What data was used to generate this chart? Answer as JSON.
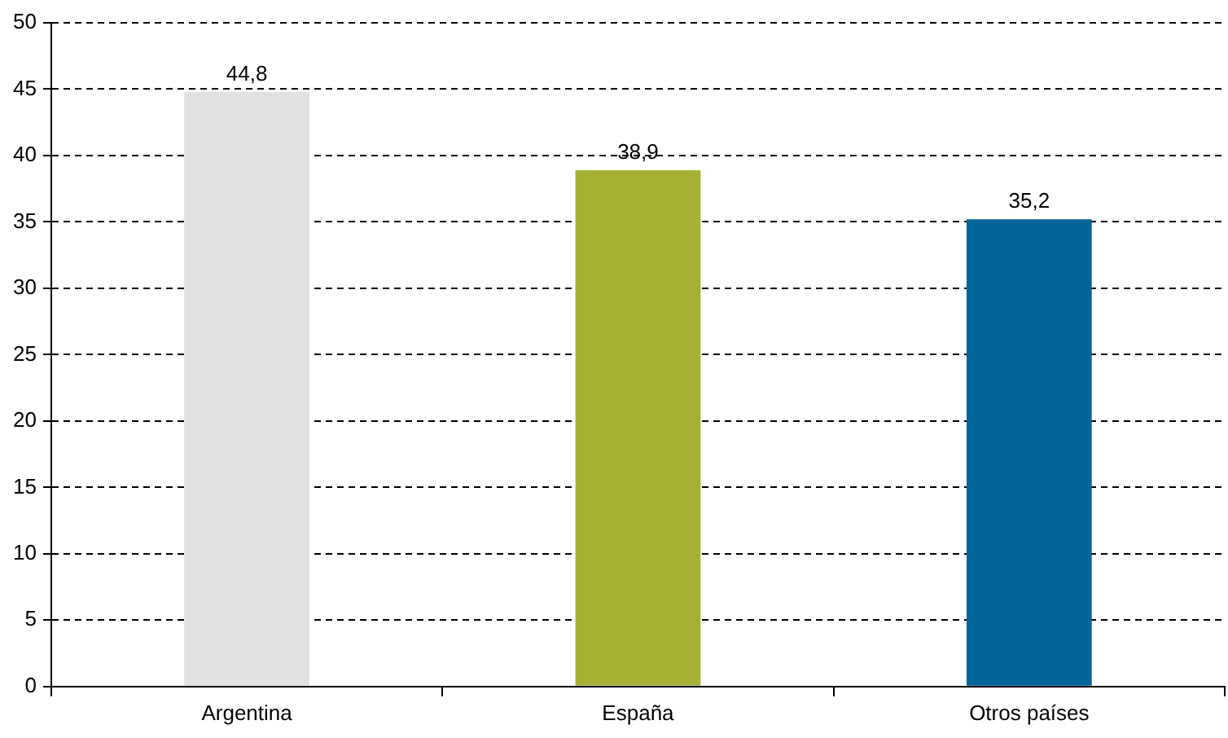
{
  "chart_data": {
    "type": "bar",
    "categories": [
      "Argentina",
      "España",
      "Otros países"
    ],
    "values": [
      44.8,
      38.9,
      35.2
    ],
    "colors": [
      "#e1e1e1",
      "#a5b035",
      "#006598"
    ],
    "value_labels": [
      "44,8",
      "38,9",
      "35,2"
    ],
    "ylim": [
      0,
      50
    ],
    "yticks": [
      0,
      5,
      10,
      15,
      20,
      25,
      30,
      35,
      40,
      45,
      50
    ],
    "grid": "y",
    "legend": false
  }
}
